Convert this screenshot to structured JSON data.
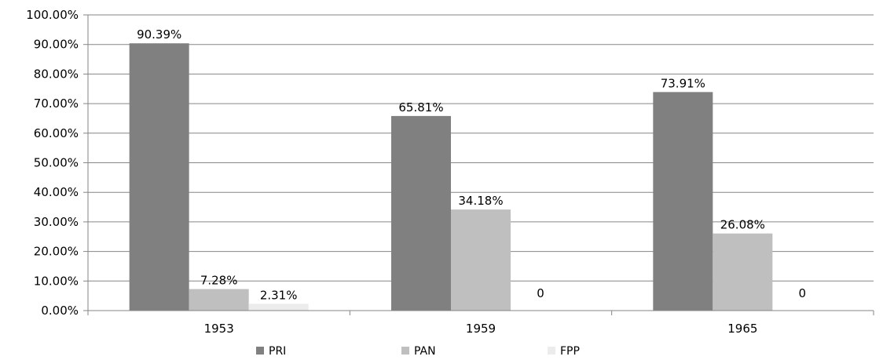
{
  "chart_data": {
    "type": "bar",
    "title": "",
    "xlabel": "",
    "ylabel": "",
    "categories": [
      "1953",
      "1959",
      "1965"
    ],
    "series": [
      {
        "name": "PRI",
        "values": [
          90.39,
          65.81,
          73.91
        ],
        "labels": [
          "90.39%",
          "65.81%",
          "73.91%"
        ],
        "color": "#808080"
      },
      {
        "name": "PAN",
        "values": [
          7.28,
          34.18,
          26.08
        ],
        "labels": [
          "7.28%",
          "34.18%",
          "26.08%"
        ],
        "color": "#bfbfbf"
      },
      {
        "name": "FPP",
        "values": [
          2.31,
          0,
          0
        ],
        "labels": [
          "2.31%",
          "0",
          "0"
        ],
        "color": "#ececec"
      }
    ],
    "ylim": [
      0,
      100
    ],
    "yticks": [
      0,
      10,
      20,
      30,
      40,
      50,
      60,
      70,
      80,
      90,
      100
    ],
    "ytick_labels": [
      "0.00%",
      "10.00%",
      "20.00%",
      "30.00%",
      "40.00%",
      "50.00%",
      "60.00%",
      "70.00%",
      "80.00%",
      "90.00%",
      "100.00%"
    ],
    "grid": true,
    "legend_position": "bottom"
  }
}
